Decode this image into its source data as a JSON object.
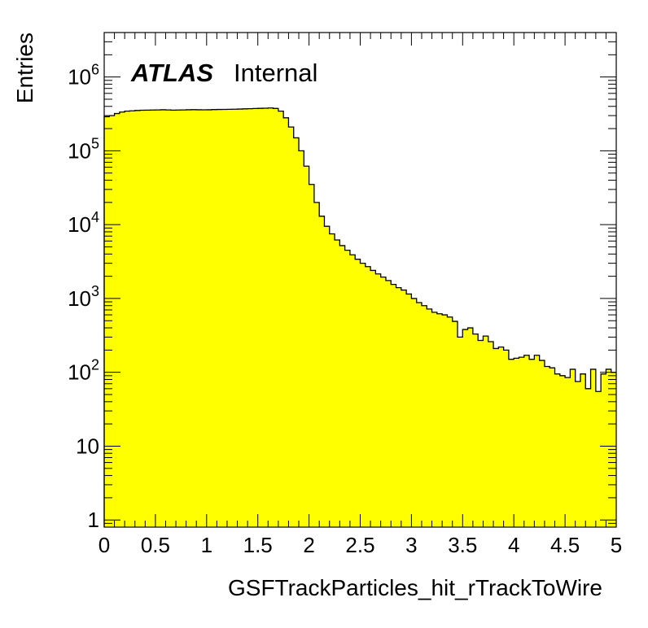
{
  "chart_data": {
    "type": "bar",
    "title": "",
    "xlabel": "GSFTrackParticles_hit_rTrackToWire",
    "ylabel": "Entries",
    "atlas_label": "ATLAS",
    "status_label": "Internal",
    "fill_color": "#ffff00",
    "line_color": "#000000",
    "xlim": [
      0,
      5
    ],
    "ylim": [
      0.8,
      4000000
    ],
    "yscale": "log",
    "grid": false,
    "x_ticks": [
      "0",
      "0.5",
      "1",
      "1.5",
      "2",
      "2.5",
      "3",
      "3.5",
      "4",
      "4.5",
      "5"
    ],
    "y_ticks": [
      {
        "value": 1,
        "mantissa": "1",
        "exponent": ""
      },
      {
        "value": 10,
        "mantissa": "10",
        "exponent": ""
      },
      {
        "value": 100,
        "mantissa": "10",
        "exponent": "2"
      },
      {
        "value": 1000,
        "mantissa": "10",
        "exponent": "3"
      },
      {
        "value": 10000,
        "mantissa": "10",
        "exponent": "4"
      },
      {
        "value": 100000,
        "mantissa": "10",
        "exponent": "5"
      },
      {
        "value": 1000000,
        "mantissa": "10",
        "exponent": "6"
      }
    ],
    "bin_width": 0.05,
    "bin_start": 0,
    "values": [
      290000,
      300000,
      320000,
      335000,
      345000,
      348000,
      352000,
      355000,
      356000,
      357000,
      358000,
      360000,
      358000,
      356000,
      357000,
      358000,
      360000,
      361000,
      360000,
      359000,
      360000,
      362000,
      363000,
      364000,
      365000,
      366000,
      368000,
      370000,
      372000,
      374000,
      376000,
      378000,
      380000,
      375000,
      345000,
      280000,
      210000,
      150000,
      100000,
      62000,
      35000,
      20000,
      13000,
      9500,
      7500,
      6200,
      5200,
      4500,
      3900,
      3400,
      3000,
      2700,
      2400,
      2150,
      1950,
      1750,
      1550,
      1400,
      1300,
      1150,
      1000,
      880,
      800,
      720,
      650,
      620,
      600,
      560,
      490,
      300,
      380,
      400,
      330,
      270,
      310,
      260,
      210,
      220,
      200,
      150,
      155,
      160,
      170,
      150,
      170,
      145,
      120,
      115,
      95,
      90,
      85,
      110,
      75,
      95,
      60,
      110,
      55,
      95,
      110,
      100
    ]
  }
}
